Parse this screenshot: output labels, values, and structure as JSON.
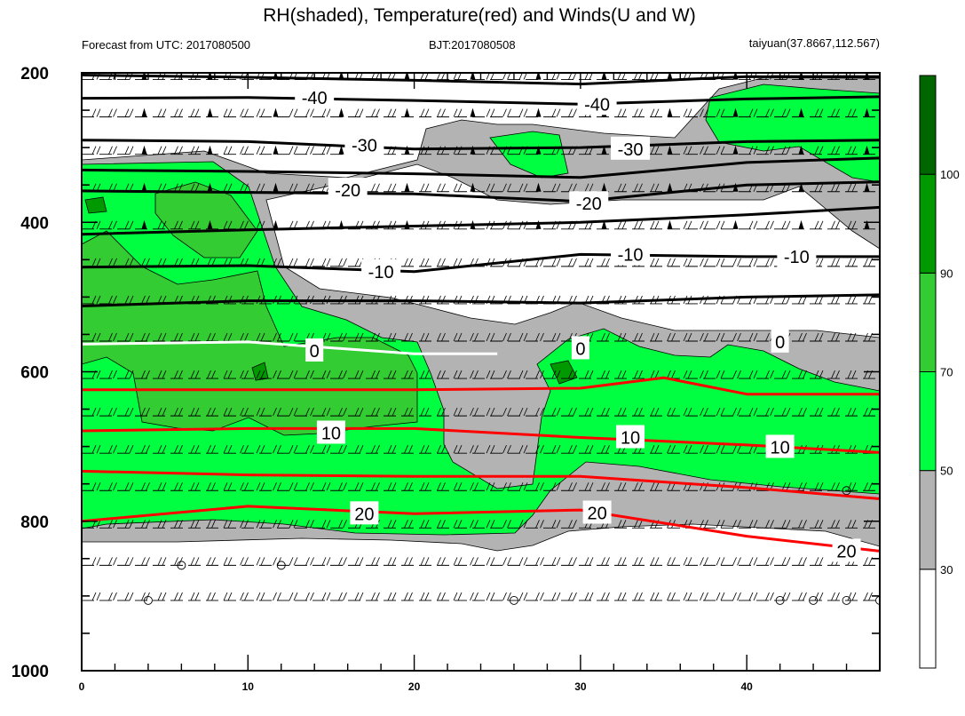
{
  "title": "RH(shaded), Temperature(red) and Winds(U and W)",
  "subtitle_left": "Forecast from UTC: 2017080500",
  "subtitle_center": "BJT:2017080508",
  "subtitle_right": "taiyuan(37.8667,112.567)",
  "colors": {
    "rh_30_50": "#b3b3b3",
    "rh_50_70": "#00ff40",
    "rh_70_90": "#33cc33",
    "rh_90_100": "#009900",
    "rh_100": "#006600",
    "temp_line": "#ff0000",
    "freezing_line": "#ffffff",
    "neg_temp_line": "#000000"
  },
  "chart_data": {
    "type": "heatmap",
    "x_ticks": [
      "0",
      "10",
      "20",
      "30",
      "40"
    ],
    "xlim": [
      0,
      48
    ],
    "y_ticks": [
      "200",
      "400",
      "600",
      "800",
      "1000"
    ],
    "ylim": [
      200,
      1000
    ],
    "y_inverted": true,
    "colorbar": {
      "labels": [
        "30",
        "50",
        "70",
        "90",
        "100"
      ],
      "levels": [
        30,
        50,
        70,
        90,
        100
      ],
      "colors": [
        "#ffffff",
        "#b3b3b3",
        "#00ff40",
        "#33cc33",
        "#009900",
        "#006600"
      ]
    },
    "contour_labels": [
      {
        "text": "-40",
        "x": 14,
        "y": 233
      },
      {
        "text": "-40",
        "x": 31,
        "y": 242
      },
      {
        "text": "-30",
        "x": 17,
        "y": 297
      },
      {
        "text": "-30",
        "x": 33,
        "y": 302
      },
      {
        "text": "-20",
        "x": 16,
        "y": 357
      },
      {
        "text": "-20",
        "x": 30.5,
        "y": 375
      },
      {
        "text": "-10",
        "x": 18,
        "y": 466
      },
      {
        "text": "-10",
        "x": 33,
        "y": 443
      },
      {
        "text": "-10",
        "x": 43,
        "y": 446
      },
      {
        "text": "0",
        "x": 14,
        "y": 572
      },
      {
        "text": "0",
        "x": 30,
        "y": 569
      },
      {
        "text": "0",
        "x": 42,
        "y": 560
      },
      {
        "text": "10",
        "x": 15,
        "y": 682
      },
      {
        "text": "10",
        "x": 33,
        "y": 688
      },
      {
        "text": "10",
        "x": 42,
        "y": 701
      },
      {
        "text": "20",
        "x": 17,
        "y": 790
      },
      {
        "text": "20",
        "x": 31,
        "y": 789
      },
      {
        "text": "20",
        "x": 46,
        "y": 840
      }
    ],
    "temperature_isotherms": [
      {
        "value": -40,
        "x": [
          0,
          10,
          20,
          30,
          40,
          48
        ],
        "y": [
          203,
          206,
          210,
          215,
          205,
          206
        ]
      },
      {
        "value": -40,
        "x": [
          0,
          10,
          20,
          30,
          40,
          48
        ],
        "y": [
          234,
          233,
          237,
          242,
          235,
          232
        ]
      },
      {
        "value": -30,
        "x": [
          0,
          10,
          20,
          30,
          40,
          48
        ],
        "y": [
          290,
          292,
          302,
          300,
          292,
          290
        ]
      },
      {
        "value": -30,
        "x": [
          0,
          10,
          20,
          30,
          40,
          48
        ],
        "y": [
          330,
          332,
          335,
          340,
          320,
          314
        ]
      },
      {
        "value": -20,
        "x": [
          0,
          10,
          20,
          30,
          40,
          48
        ],
        "y": [
          358,
          360,
          362,
          372,
          350,
          346
        ]
      },
      {
        "value": -20,
        "x": [
          0,
          10,
          20,
          30,
          40,
          48
        ],
        "y": [
          416,
          410,
          405,
          400,
          390,
          380
        ]
      },
      {
        "value": -10,
        "x": [
          0,
          10,
          20,
          30,
          40,
          48
        ],
        "y": [
          460,
          458,
          466,
          443,
          446,
          446
        ]
      },
      {
        "value": -10,
        "x": [
          0,
          10,
          20,
          30,
          40,
          48
        ],
        "y": [
          512,
          505,
          505,
          508,
          500,
          497
        ]
      },
      {
        "value": 0,
        "x": [
          0,
          10,
          20,
          25
        ],
        "y": [
          563,
          560,
          576,
          576
        ]
      },
      {
        "value": 10,
        "x": [
          0,
          10,
          20,
          30,
          35,
          40,
          48
        ],
        "y": [
          624,
          624,
          624,
          622,
          608,
          630,
          630
        ]
      },
      {
        "value": 10,
        "x": [
          0,
          10,
          20,
          30,
          40,
          48
        ],
        "y": [
          679,
          676,
          676,
          688,
          698,
          708
        ]
      },
      {
        "value": 20,
        "x": [
          0,
          10,
          20,
          30,
          40,
          48
        ],
        "y": [
          733,
          738,
          740,
          740,
          755,
          770
        ]
      },
      {
        "value": 20,
        "x": [
          0,
          10,
          20,
          30,
          40,
          48
        ],
        "y": [
          800,
          780,
          790,
          785,
          820,
          840
        ]
      }
    ]
  }
}
